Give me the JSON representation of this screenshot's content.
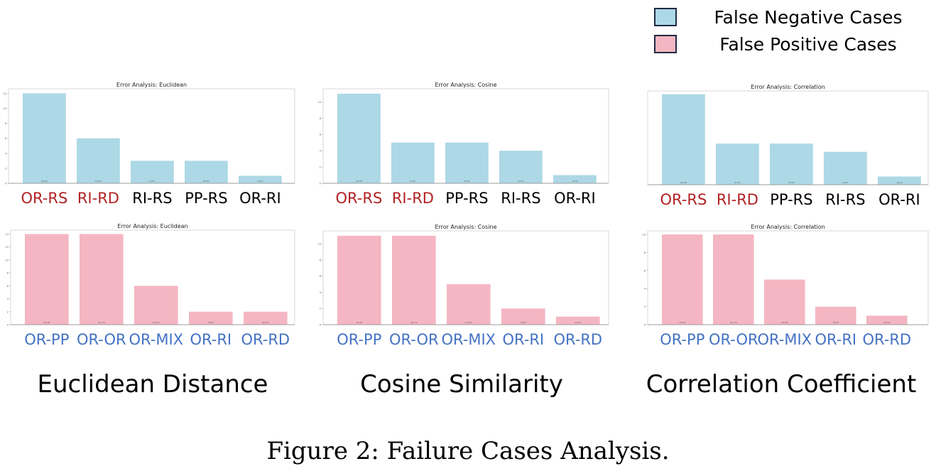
{
  "legend": {
    "items": [
      {
        "label": "False Negative Cases",
        "color": "#add8e6"
      },
      {
        "label": "False Positive Cases",
        "color": "#f4b6c2"
      }
    ]
  },
  "groups": [
    {
      "label": "Euclidean Distance"
    },
    {
      "label": "Cosine Similarity"
    },
    {
      "label": "Correlation Coefficient"
    }
  ],
  "caption": "Figure 2: Failure Cases Analysis.",
  "colors": {
    "false_negative_bar": "#add8e6",
    "false_positive_bar": "#f4b6c2",
    "label_red": "#b22222",
    "label_black": "#000000",
    "label_blue": "#4472c4"
  },
  "chart_data": [
    {
      "type": "bar",
      "title": "Error Analysis: Euclidean",
      "series_group": "false_negative",
      "categories": [
        "OR-RS",
        "RI-RD",
        "RI-RS",
        "PP-RS",
        "OR-RI"
      ],
      "category_colors": [
        "label_red",
        "label_red",
        "label_black",
        "label_black",
        "label_black"
      ],
      "values": [
        12,
        6,
        3,
        3,
        1
      ],
      "ylim": [
        0,
        12.6
      ],
      "yticks": [
        "0",
        "2",
        "4",
        "6",
        "8",
        "10",
        "12"
      ]
    },
    {
      "type": "bar",
      "title": "Error Analysis: Cosine",
      "series_group": "false_negative",
      "categories": [
        "OR-RS",
        "RI-RD",
        "PP-RS",
        "RI-RS",
        "OR-RI"
      ],
      "category_colors": [
        "label_red",
        "label_red",
        "label_black",
        "label_black",
        "label_black"
      ],
      "values": [
        11,
        5,
        5,
        4,
        1
      ],
      "ylim": [
        0,
        11.6
      ],
      "yticks": [
        "0",
        "2",
        "4",
        "6",
        "8",
        "10"
      ]
    },
    {
      "type": "bar",
      "title": "Error Analysis: Correlation",
      "series_group": "false_negative",
      "categories": [
        "OR-RS",
        "RI-RD",
        "PP-RS",
        "RI-RS",
        "OR-RI"
      ],
      "category_colors": [
        "label_red",
        "label_red",
        "label_black",
        "label_black",
        "label_black"
      ],
      "values": [
        11,
        5,
        5,
        4,
        1
      ],
      "ylim": [
        0,
        11.4
      ],
      "yticks": []
    },
    {
      "type": "bar",
      "title": "Error Analysis: Euclidean",
      "series_group": "false_positive",
      "categories": [
        "OR-PP",
        "OR-OR",
        "OR-MIX",
        "OR-RI",
        "OR-RD"
      ],
      "category_colors": [
        "label_blue",
        "label_blue",
        "label_blue",
        "label_blue",
        "label_blue"
      ],
      "values": [
        14,
        14,
        6,
        2,
        2
      ],
      "ylim": [
        0,
        14.6
      ],
      "yticks": [
        "0",
        "2",
        "4",
        "6",
        "8",
        "10",
        "12",
        "14"
      ]
    },
    {
      "type": "bar",
      "title": "Error Analysis: Cosine",
      "series_group": "false_positive",
      "categories": [
        "OR-PP",
        "OR-OR",
        "OR-MIX",
        "OR-RI",
        "OR-RD"
      ],
      "category_colors": [
        "label_blue",
        "label_blue",
        "label_blue",
        "label_blue",
        "label_blue"
      ],
      "values": [
        11,
        11,
        5,
        2,
        1
      ],
      "ylim": [
        0,
        11.6
      ],
      "yticks": [
        "0",
        "2",
        "4",
        "6",
        "8",
        "10"
      ]
    },
    {
      "type": "bar",
      "title": "Error Analysis: Correlation",
      "series_group": "false_positive",
      "categories": [
        "OR-PP",
        "OR-OR",
        "OR-MIX",
        "OR-RI",
        "OR-RD"
      ],
      "category_colors": [
        "label_blue",
        "label_blue",
        "label_blue",
        "label_blue",
        "label_blue"
      ],
      "values": [
        10,
        10,
        5,
        2,
        1
      ],
      "ylim": [
        0,
        10.4
      ],
      "yticks": [
        "0",
        "2",
        "4",
        "6",
        "8",
        "10"
      ]
    }
  ]
}
